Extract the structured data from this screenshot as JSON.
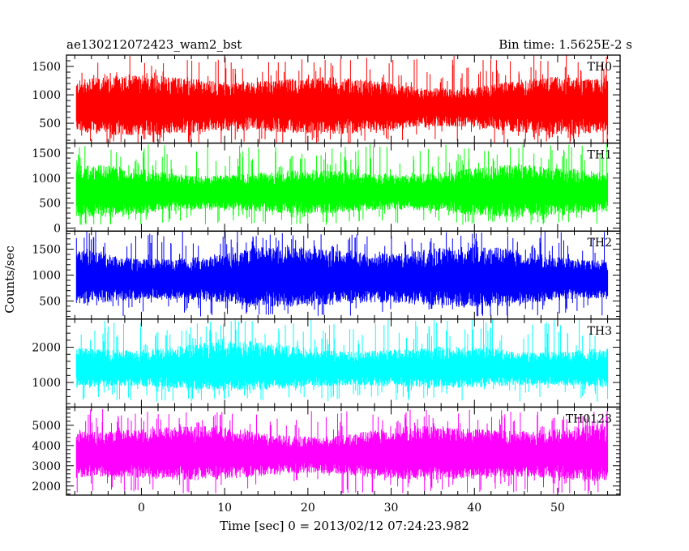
{
  "header": {
    "left_title": "ae130212072423_wam2_bst",
    "right_title": "Bin time: 1.5625E-2 s"
  },
  "chart_data": {
    "type": "line",
    "title": "ae130212072423_wam2_bst",
    "subtitle": "Bin time: 1.5625E-2 s",
    "xlabel": "Time [sec] 0 = 2013/02/12 07:24:23.982",
    "ylabel": "Counts/sec",
    "xlim": [
      -9,
      57.5
    ],
    "x_ticks": [
      0,
      10,
      20,
      30,
      40,
      50
    ],
    "x_range_data": [
      -7.8,
      56.0
    ],
    "bin_time_s": 0.015625,
    "grid": false,
    "panels": [
      {
        "name": "TH0",
        "color": "#ff0000",
        "ylim": [
          150,
          1700
        ],
        "y_ticks": [
          500,
          1000,
          1500
        ],
        "envelope_mean": 780,
        "envelope_low": 350,
        "envelope_high": 1250,
        "spike_min": 100,
        "spike_max": 1700
      },
      {
        "name": "TH1",
        "color": "#00ff00",
        "ylim": [
          -60,
          1700
        ],
        "y_ticks": [
          0,
          500,
          1000,
          1500
        ],
        "envelope_mean": 700,
        "envelope_low": 300,
        "envelope_high": 1150,
        "spike_min": 60,
        "spike_max": 1680
      },
      {
        "name": "TH2",
        "color": "#0000ff",
        "ylim": [
          150,
          1850
        ],
        "y_ticks": [
          500,
          1000,
          1500
        ],
        "envelope_mean": 900,
        "envelope_low": 450,
        "envelope_high": 1450,
        "spike_min": 200,
        "spike_max": 1850
      },
      {
        "name": "TH3",
        "color": "#00ffff",
        "ylim": [
          300,
          2800
        ],
        "y_ticks": [
          1000,
          2000
        ],
        "envelope_mean": 1350,
        "envelope_low": 850,
        "envelope_high": 2000,
        "spike_min": 450,
        "spike_max": 2800
      },
      {
        "name": "TH0123",
        "color": "#ff00ff",
        "ylim": [
          1550,
          5900
        ],
        "y_ticks": [
          2000,
          3000,
          4000,
          5000
        ],
        "envelope_mean": 3500,
        "envelope_low": 2400,
        "envelope_high": 4800,
        "spike_min": 1600,
        "spike_max": 5800
      }
    ]
  }
}
